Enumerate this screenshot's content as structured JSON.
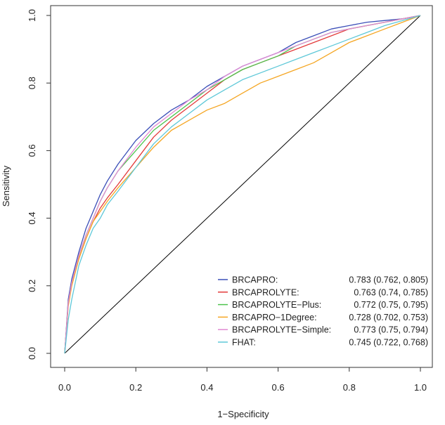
{
  "chart_data": {
    "type": "line",
    "title": "",
    "xlabel": "1−Specificity",
    "ylabel": "Sensitivity",
    "xlim": [
      0.0,
      1.0
    ],
    "ylim": [
      0.0,
      1.0
    ],
    "x_ticks": [
      "0.0",
      "0.2",
      "0.4",
      "0.6",
      "0.8",
      "1.0"
    ],
    "y_ticks": [
      "0.0",
      "0.2",
      "0.4",
      "0.6",
      "0.8",
      "1.0"
    ],
    "grid": false,
    "legend_position": "bottom-right",
    "reference_line": {
      "from": [
        0,
        0
      ],
      "to": [
        1,
        1
      ],
      "color": "#000000"
    },
    "series": [
      {
        "name": "BRCAPRO:",
        "auc": "0.783 (0.762, 0.805)",
        "color": "#3b4fb8",
        "x": [
          0,
          0.01,
          0.02,
          0.04,
          0.06,
          0.08,
          0.1,
          0.12,
          0.15,
          0.2,
          0.25,
          0.3,
          0.35,
          0.4,
          0.45,
          0.5,
          0.55,
          0.6,
          0.65,
          0.7,
          0.75,
          0.8,
          0.85,
          0.9,
          0.95,
          1.0
        ],
        "y": [
          0,
          0.16,
          0.22,
          0.3,
          0.37,
          0.42,
          0.47,
          0.51,
          0.56,
          0.63,
          0.68,
          0.72,
          0.75,
          0.79,
          0.82,
          0.85,
          0.87,
          0.89,
          0.92,
          0.94,
          0.96,
          0.97,
          0.98,
          0.985,
          0.99,
          1.0
        ]
      },
      {
        "name": "BRCAPROLYTE:",
        "auc": "0.763 (0.74, 0.785)",
        "color": "#e33b3b",
        "x": [
          0,
          0.01,
          0.02,
          0.04,
          0.06,
          0.08,
          0.1,
          0.12,
          0.15,
          0.2,
          0.25,
          0.3,
          0.35,
          0.4,
          0.45,
          0.5,
          0.55,
          0.6,
          0.65,
          0.7,
          0.75,
          0.8,
          0.85,
          0.9,
          0.95,
          1.0
        ],
        "y": [
          0,
          0.15,
          0.21,
          0.28,
          0.34,
          0.39,
          0.43,
          0.46,
          0.5,
          0.57,
          0.64,
          0.69,
          0.73,
          0.77,
          0.81,
          0.84,
          0.86,
          0.88,
          0.9,
          0.92,
          0.94,
          0.96,
          0.97,
          0.98,
          0.99,
          1.0
        ]
      },
      {
        "name": "BRCAPROLYTE−Plus:",
        "auc": "0.772 (0.75, 0.795)",
        "color": "#4ec44e",
        "x": [
          0,
          0.01,
          0.02,
          0.04,
          0.06,
          0.08,
          0.1,
          0.12,
          0.15,
          0.2,
          0.25,
          0.3,
          0.35,
          0.4,
          0.45,
          0.5,
          0.55,
          0.6,
          0.65,
          0.7,
          0.75,
          0.8,
          0.85,
          0.9,
          0.95,
          1.0
        ],
        "y": [
          0,
          0.15,
          0.21,
          0.29,
          0.35,
          0.4,
          0.45,
          0.49,
          0.54,
          0.6,
          0.66,
          0.7,
          0.74,
          0.78,
          0.81,
          0.84,
          0.86,
          0.88,
          0.91,
          0.93,
          0.95,
          0.96,
          0.97,
          0.98,
          0.99,
          1.0
        ]
      },
      {
        "name": "BRCAPRO−1Degree:",
        "auc": "0.728 (0.702, 0.753)",
        "color": "#f5a623",
        "x": [
          0,
          0.01,
          0.02,
          0.04,
          0.06,
          0.08,
          0.1,
          0.12,
          0.15,
          0.2,
          0.25,
          0.3,
          0.35,
          0.4,
          0.45,
          0.5,
          0.55,
          0.6,
          0.65,
          0.7,
          0.75,
          0.8,
          0.85,
          0.9,
          0.95,
          1.0
        ],
        "y": [
          0,
          0.14,
          0.2,
          0.28,
          0.34,
          0.39,
          0.42,
          0.45,
          0.49,
          0.55,
          0.61,
          0.66,
          0.69,
          0.72,
          0.74,
          0.77,
          0.8,
          0.82,
          0.84,
          0.86,
          0.89,
          0.92,
          0.94,
          0.96,
          0.98,
          1.0
        ]
      },
      {
        "name": "BRCAPROLYTE−Simple:",
        "auc": "0.773 (0.75, 0.794)",
        "color": "#e18ad3",
        "x": [
          0,
          0.01,
          0.02,
          0.04,
          0.06,
          0.08,
          0.1,
          0.12,
          0.15,
          0.2,
          0.25,
          0.3,
          0.35,
          0.4,
          0.45,
          0.5,
          0.55,
          0.6,
          0.65,
          0.7,
          0.75,
          0.8,
          0.85,
          0.9,
          0.95,
          1.0
        ],
        "y": [
          0,
          0.15,
          0.21,
          0.29,
          0.35,
          0.4,
          0.45,
          0.49,
          0.54,
          0.61,
          0.67,
          0.71,
          0.75,
          0.78,
          0.82,
          0.85,
          0.87,
          0.89,
          0.91,
          0.93,
          0.95,
          0.96,
          0.97,
          0.98,
          0.99,
          1.0
        ]
      },
      {
        "name": "FHAT:",
        "auc": "0.745 (0.722, 0.768)",
        "color": "#5ec8d8",
        "x": [
          0,
          0.01,
          0.02,
          0.04,
          0.06,
          0.08,
          0.1,
          0.12,
          0.15,
          0.2,
          0.25,
          0.3,
          0.35,
          0.4,
          0.45,
          0.5,
          0.55,
          0.6,
          0.65,
          0.7,
          0.75,
          0.8,
          0.85,
          0.9,
          0.95,
          1.0
        ],
        "y": [
          0,
          0.1,
          0.16,
          0.26,
          0.32,
          0.37,
          0.4,
          0.44,
          0.48,
          0.55,
          0.62,
          0.67,
          0.71,
          0.75,
          0.78,
          0.81,
          0.83,
          0.85,
          0.87,
          0.89,
          0.91,
          0.93,
          0.95,
          0.97,
          0.985,
          1.0
        ]
      }
    ]
  }
}
